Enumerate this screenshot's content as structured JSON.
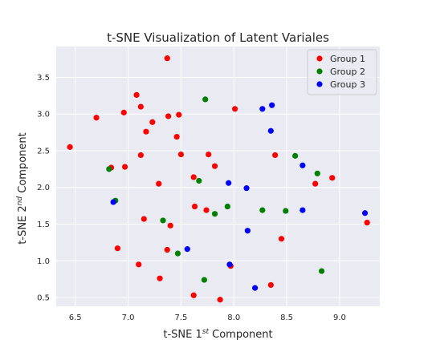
{
  "chart_data": {
    "type": "scatter",
    "title": "t-SNE Visualization of Latent Variales",
    "xlabel": {
      "pre": "t-SNE 1",
      "sup": "st",
      "post": " Component"
    },
    "ylabel": {
      "pre": "t-SNE 2",
      "sup": "nd",
      "post": " Component"
    },
    "xlim": [
      6.32,
      9.38
    ],
    "ylim": [
      0.38,
      3.92
    ],
    "xticks": [
      6.5,
      7.0,
      7.5,
      8.0,
      8.5,
      9.0
    ],
    "xtick_labels": [
      "6.5",
      "7.0",
      "7.5",
      "8.0",
      "8.5",
      "9.0"
    ],
    "yticks": [
      0.5,
      1.0,
      1.5,
      2.0,
      2.5,
      3.0,
      3.5
    ],
    "ytick_labels": [
      "0.5",
      "1.0",
      "1.5",
      "2.0",
      "2.5",
      "3.0",
      "3.5"
    ],
    "grid": true,
    "background": "#eaeaf2",
    "legend_position": "top-right",
    "series": [
      {
        "name": "Group 1",
        "color": "#ff0000",
        "points": [
          [
            7.37,
            3.76
          ],
          [
            7.08,
            3.26
          ],
          [
            7.12,
            3.1
          ],
          [
            8.01,
            3.07
          ],
          [
            6.96,
            3.02
          ],
          [
            7.48,
            2.99
          ],
          [
            7.38,
            2.97
          ],
          [
            6.7,
            2.95
          ],
          [
            7.23,
            2.89
          ],
          [
            7.17,
            2.76
          ],
          [
            7.46,
            2.69
          ],
          [
            6.45,
            2.55
          ],
          [
            7.12,
            2.44
          ],
          [
            7.5,
            2.45
          ],
          [
            7.76,
            2.45
          ],
          [
            8.39,
            2.44
          ],
          [
            6.84,
            2.27
          ],
          [
            6.97,
            2.28
          ],
          [
            7.82,
            2.29
          ],
          [
            7.62,
            2.14
          ],
          [
            8.93,
            2.13
          ],
          [
            8.77,
            2.05
          ],
          [
            7.29,
            2.05
          ],
          [
            7.63,
            1.74
          ],
          [
            7.74,
            1.69
          ],
          [
            7.15,
            1.57
          ],
          [
            7.4,
            1.48
          ],
          [
            9.26,
            1.52
          ],
          [
            8.45,
            1.3
          ],
          [
            6.9,
            1.17
          ],
          [
            7.37,
            1.15
          ],
          [
            7.1,
            0.95
          ],
          [
            7.97,
            0.93
          ],
          [
            7.3,
            0.76
          ],
          [
            8.35,
            0.67
          ],
          [
            7.62,
            0.53
          ],
          [
            7.87,
            0.47
          ]
        ]
      },
      {
        "name": "Group 2",
        "color": "#008000",
        "points": [
          [
            7.73,
            3.2
          ],
          [
            8.58,
            2.43
          ],
          [
            6.82,
            2.25
          ],
          [
            7.67,
            2.09
          ],
          [
            8.79,
            2.19
          ],
          [
            6.88,
            1.82
          ],
          [
            7.94,
            1.74
          ],
          [
            8.27,
            1.69
          ],
          [
            8.49,
            1.68
          ],
          [
            7.82,
            1.64
          ],
          [
            7.33,
            1.55
          ],
          [
            7.47,
            1.1
          ],
          [
            8.83,
            0.86
          ],
          [
            7.72,
            0.74
          ]
        ]
      },
      {
        "name": "Group 3",
        "color": "#0000ff",
        "points": [
          [
            8.36,
            3.12
          ],
          [
            8.27,
            3.07
          ],
          [
            8.35,
            2.77
          ],
          [
            8.65,
            2.3
          ],
          [
            7.95,
            2.06
          ],
          [
            8.12,
            1.99
          ],
          [
            6.86,
            1.8
          ],
          [
            8.65,
            1.69
          ],
          [
            9.24,
            1.65
          ],
          [
            8.13,
            1.41
          ],
          [
            7.56,
            1.16
          ],
          [
            7.96,
            0.95
          ],
          [
            8.2,
            0.63
          ]
        ]
      }
    ]
  }
}
